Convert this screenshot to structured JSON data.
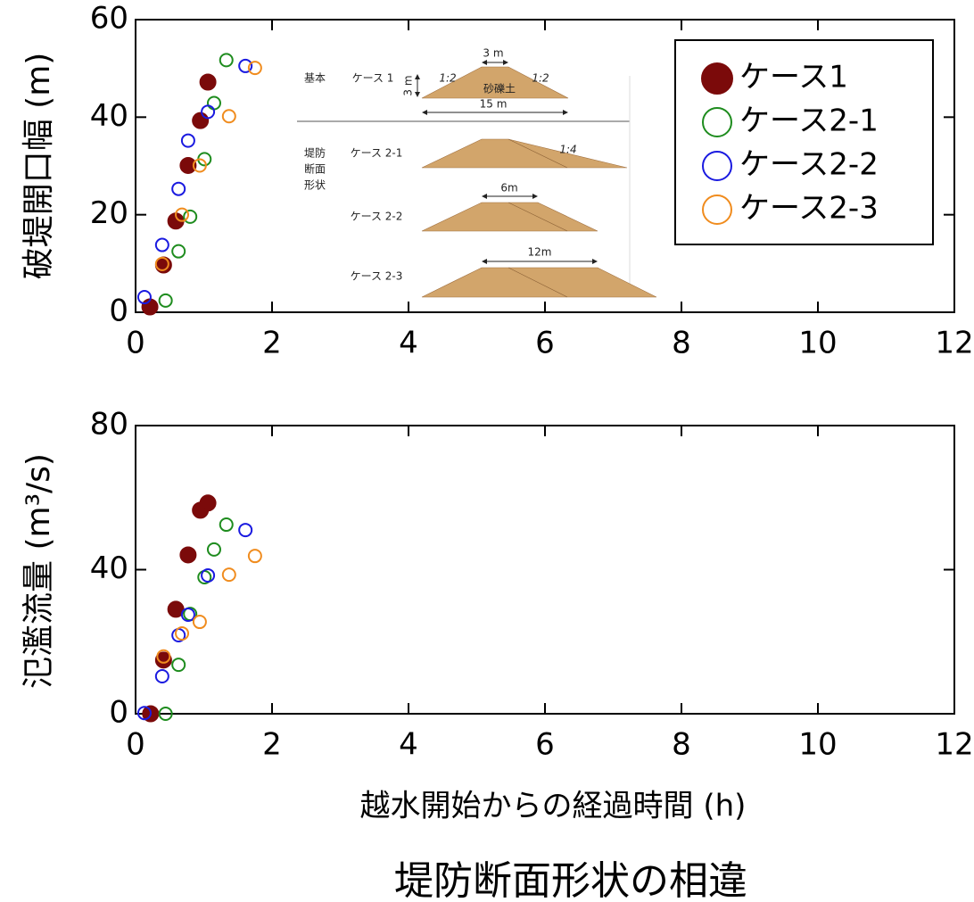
{
  "chart_data": [
    {
      "type": "scatter",
      "y_label": "破堤開口幅 (m)",
      "xlim": [
        0,
        12
      ],
      "xticks": [
        0,
        2,
        4,
        6,
        8,
        10,
        12
      ],
      "ylim": [
        0,
        60
      ],
      "yticks": [
        0,
        20,
        40,
        60
      ],
      "legend": "upper right",
      "series": [
        {
          "name": "ケース1",
          "color": "#7b0a0a",
          "filled": true,
          "x": [
            0.21,
            0.41,
            0.59,
            0.77,
            0.95,
            1.06
          ],
          "values": [
            1.1,
            9.7,
            18.7,
            30.1,
            39.3,
            47.2
          ]
        },
        {
          "name": "ケース2-1",
          "color": "#1e8c1e",
          "filled": false,
          "x": [
            0.44,
            0.63,
            0.8,
            1.01,
            1.15,
            1.33
          ],
          "values": [
            2.4,
            12.5,
            19.6,
            31.4,
            42.9,
            51.7
          ]
        },
        {
          "name": "ケース2-2",
          "color": "#1a1ae0",
          "filled": false,
          "x": [
            0.13,
            0.39,
            0.63,
            0.77,
            1.06,
            1.61
          ],
          "values": [
            3.1,
            13.8,
            25.3,
            35.2,
            41.1,
            50.5
          ]
        },
        {
          "name": "ケース2-3",
          "color": "#f08c1e",
          "filled": false,
          "x": [
            0.39,
            0.68,
            0.94,
            1.37,
            1.75
          ],
          "values": [
            9.9,
            20.0,
            30.1,
            40.2,
            50.1
          ]
        }
      ],
      "inset": {
        "basic": "基本",
        "case1": "ケース 1",
        "crest1": "3 m",
        "height1": "3 m",
        "slope_left": "1:2",
        "slope_right": "1:2",
        "soil": "砂礫土",
        "base1": "15 m",
        "group": [
          "堤防",
          "断面",
          "形状"
        ],
        "case21": "ケース 2-1",
        "slope21": "1:4",
        "case22": "ケース 2-2",
        "crest22": "6m",
        "case23": "ケース 2-3",
        "crest23": "12m"
      }
    },
    {
      "type": "scatter",
      "y_label": "氾濫流量 (m³/s)",
      "x_label": "越水開始からの経過時間 (h)",
      "xlim": [
        0,
        12
      ],
      "xticks": [
        0,
        2,
        4,
        6,
        8,
        10,
        12
      ],
      "ylim": [
        0,
        80
      ],
      "yticks": [
        0,
        40,
        80
      ],
      "series": [
        {
          "color": "#7b0a0a",
          "filled": true,
          "x": [
            0.22,
            0.41,
            0.59,
            0.77,
            0.95,
            1.06
          ],
          "values": [
            0,
            14.9,
            29.0,
            44.1,
            56.5,
            58.5
          ]
        },
        {
          "color": "#1e8c1e",
          "filled": false,
          "x": [
            0.44,
            0.63,
            0.8,
            1.01,
            1.15,
            1.33
          ],
          "values": [
            0,
            13.6,
            27.7,
            37.9,
            45.6,
            52.5
          ]
        },
        {
          "color": "#1a1ae0",
          "filled": false,
          "x": [
            0.13,
            0.39,
            0.63,
            0.77,
            1.06,
            1.61
          ],
          "values": [
            0.2,
            10.4,
            21.8,
            27.5,
            38.4,
            51.0
          ]
        },
        {
          "color": "#f08c1e",
          "filled": false,
          "x": [
            0.41,
            0.68,
            0.94,
            1.37,
            1.75
          ],
          "values": [
            15.9,
            22.3,
            25.5,
            38.6,
            43.8
          ]
        }
      ]
    }
  ],
  "title": "堤防断面形状の相違"
}
